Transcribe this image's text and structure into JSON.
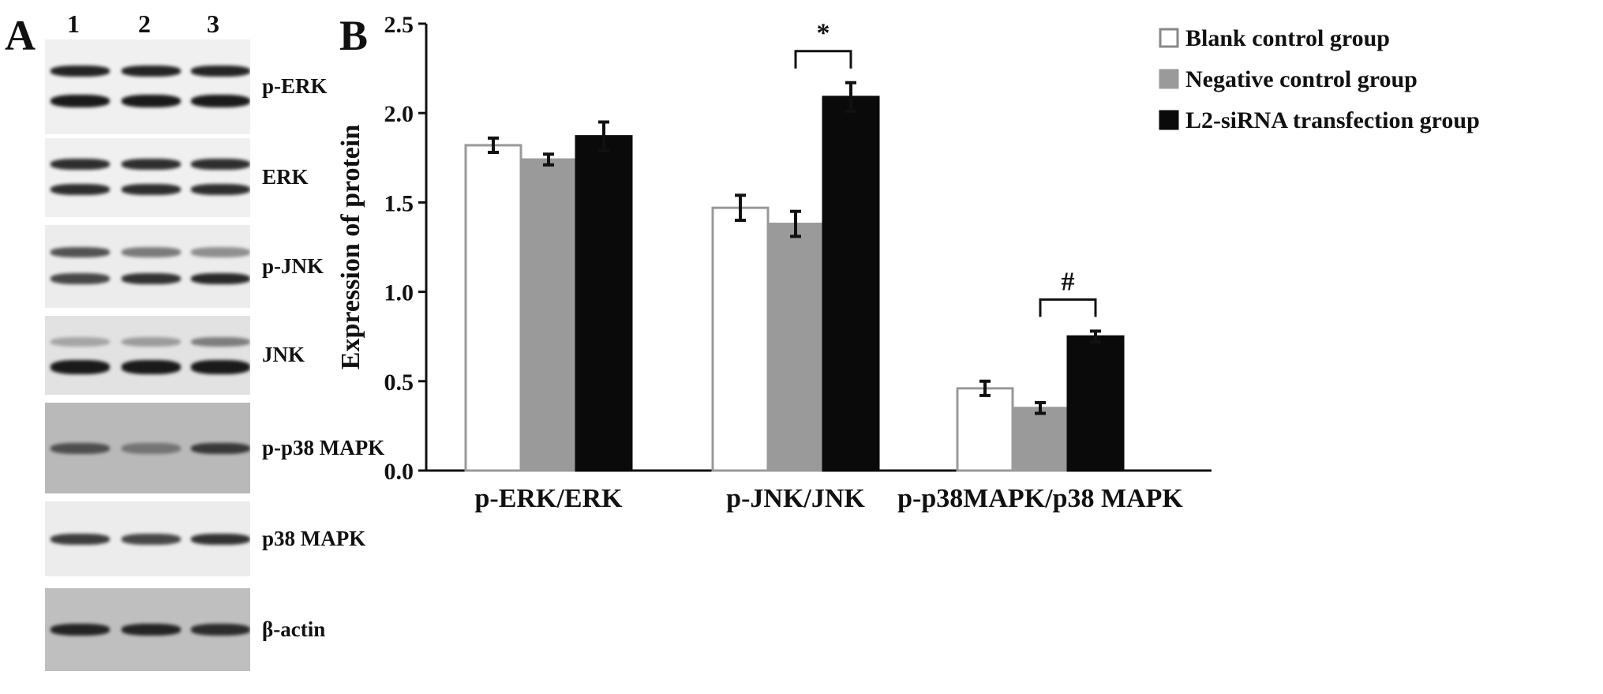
{
  "panel_a": {
    "letter": "A",
    "lanes": [
      "1",
      "2",
      "3"
    ],
    "blots": [
      {
        "label": "p-ERK",
        "bg": "#f0f0f0",
        "band_color": "#1a1a1a",
        "bands": [
          {
            "intensity": [
              0.95,
              0.95,
              0.95
            ],
            "thick": 1.0
          },
          {
            "intensity": [
              1.0,
              1.0,
              1.0
            ],
            "thick": 1.2
          }
        ]
      },
      {
        "label": "ERK",
        "bg": "#f0f0f0",
        "band_color": "#1a1a1a",
        "bands": [
          {
            "intensity": [
              0.9,
              0.9,
              0.9
            ],
            "thick": 1.0
          },
          {
            "intensity": [
              0.9,
              0.9,
              0.9
            ],
            "thick": 1.0
          }
        ]
      },
      {
        "label": "p-JNK",
        "bg": "#ececec",
        "band_color": "#1f1f1f",
        "bands": [
          {
            "intensity": [
              0.75,
              0.55,
              0.45
            ],
            "thick": 0.9
          },
          {
            "intensity": [
              0.8,
              0.9,
              0.95
            ],
            "thick": 1.0
          }
        ]
      },
      {
        "label": "JNK",
        "bg": "#e2e2e2",
        "band_color": "#1a1a1a",
        "bands": [
          {
            "intensity": [
              0.3,
              0.35,
              0.5
            ],
            "thick": 0.9
          },
          {
            "intensity": [
              1.0,
              1.0,
              1.0
            ],
            "thick": 1.3
          }
        ]
      },
      {
        "label": "p-p38 MAPK",
        "bg": "#b9b9b9",
        "band_color": "#222222",
        "bands": [
          {
            "intensity": [
              0.7,
              0.45,
              0.85
            ],
            "thick": 1.0
          }
        ]
      },
      {
        "label": "p38 MAPK",
        "bg": "#ececec",
        "band_color": "#1f1f1f",
        "bands": [
          {
            "intensity": [
              0.85,
              0.8,
              0.9
            ],
            "thick": 1.0
          }
        ]
      },
      {
        "label": "β-actin",
        "bg": "#bfbfbf",
        "band_color": "#1c1c1c",
        "bands": [
          {
            "intensity": [
              0.95,
              0.95,
              0.9
            ],
            "thick": 1.1
          }
        ]
      }
    ]
  },
  "panel_b": {
    "letter": "B"
  },
  "chart_data": {
    "type": "bar",
    "categories": [
      "p-ERK/ERK",
      "p-JNK/JNK",
      "p-p38MAPK/p38 MAPK"
    ],
    "xlabel": "",
    "ylabel": "Expression of protein",
    "ylim": [
      0,
      2.5
    ],
    "yticks": [
      "0.0",
      "0.5",
      "1.0",
      "1.5",
      "2.0",
      "2.5"
    ],
    "grid": false,
    "legend_position": "top-right",
    "series": [
      {
        "name": "Blank control group",
        "values": [
          1.82,
          1.47,
          0.46
        ],
        "errors": [
          0.04,
          0.07,
          0.04
        ],
        "fill": "#ffffff",
        "stroke": "#999999"
      },
      {
        "name": "Negative control group",
        "values": [
          1.74,
          1.38,
          0.35
        ],
        "errors": [
          0.03,
          0.07,
          0.03
        ],
        "fill": "#9a9a9a",
        "stroke": "#9a9a9a"
      },
      {
        "name": "L2-siRNA transfection group",
        "values": [
          1.87,
          2.09,
          0.75
        ],
        "errors": [
          0.08,
          0.08,
          0.03
        ],
        "fill": "#0a0a0a",
        "stroke": "#0a0a0a"
      }
    ],
    "annotations": [
      {
        "text": "*",
        "category": 1,
        "from_series": 1,
        "to_series": 2
      },
      {
        "text": "#",
        "category": 2,
        "from_series": 1,
        "to_series": 2
      }
    ]
  }
}
